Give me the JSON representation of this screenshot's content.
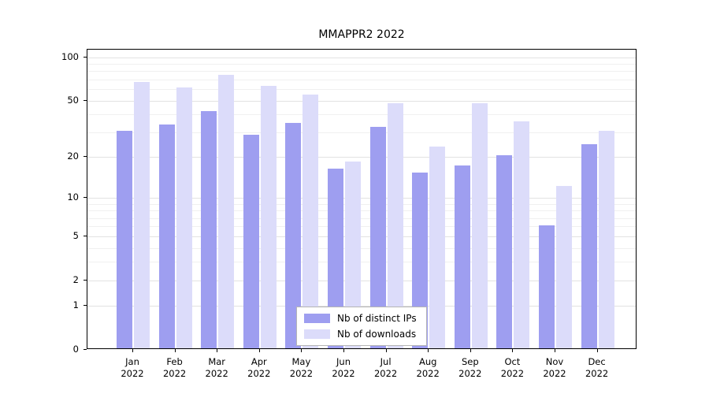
{
  "title": "MMAPPR2 2022",
  "chart_data": {
    "type": "bar",
    "title": "MMAPPR2 2022",
    "categories": [
      "Jan 2022",
      "Feb 2022",
      "Mar 2022",
      "Apr 2022",
      "May 2022",
      "Jun 2022",
      "Jul 2022",
      "Aug 2022",
      "Sep 2022",
      "Oct 2022",
      "Nov 2022",
      "Dec 2022"
    ],
    "series": [
      {
        "name": "Nb of distinct IPs",
        "color": "#9e9ef0",
        "values": [
          30,
          33,
          41,
          28,
          34,
          16,
          32,
          15,
          17,
          20,
          6,
          24
        ]
      },
      {
        "name": "Nb of downloads",
        "color": "#dcdcfa",
        "values": [
          66,
          60,
          74,
          62,
          54,
          18,
          47,
          23,
          47,
          35,
          12,
          30
        ]
      }
    ],
    "xlabel": "",
    "ylabel": "",
    "yscale": "log1p",
    "ylim": [
      0,
      113
    ],
    "yticks": [
      0,
      1,
      2,
      5,
      10,
      20,
      50,
      100
    ],
    "gridlines": [
      1,
      2,
      3,
      4,
      5,
      6,
      7,
      8,
      9,
      10,
      20,
      30,
      40,
      50,
      60,
      70,
      80,
      90,
      100
    ],
    "grid": true,
    "legend_position": "lower center"
  }
}
